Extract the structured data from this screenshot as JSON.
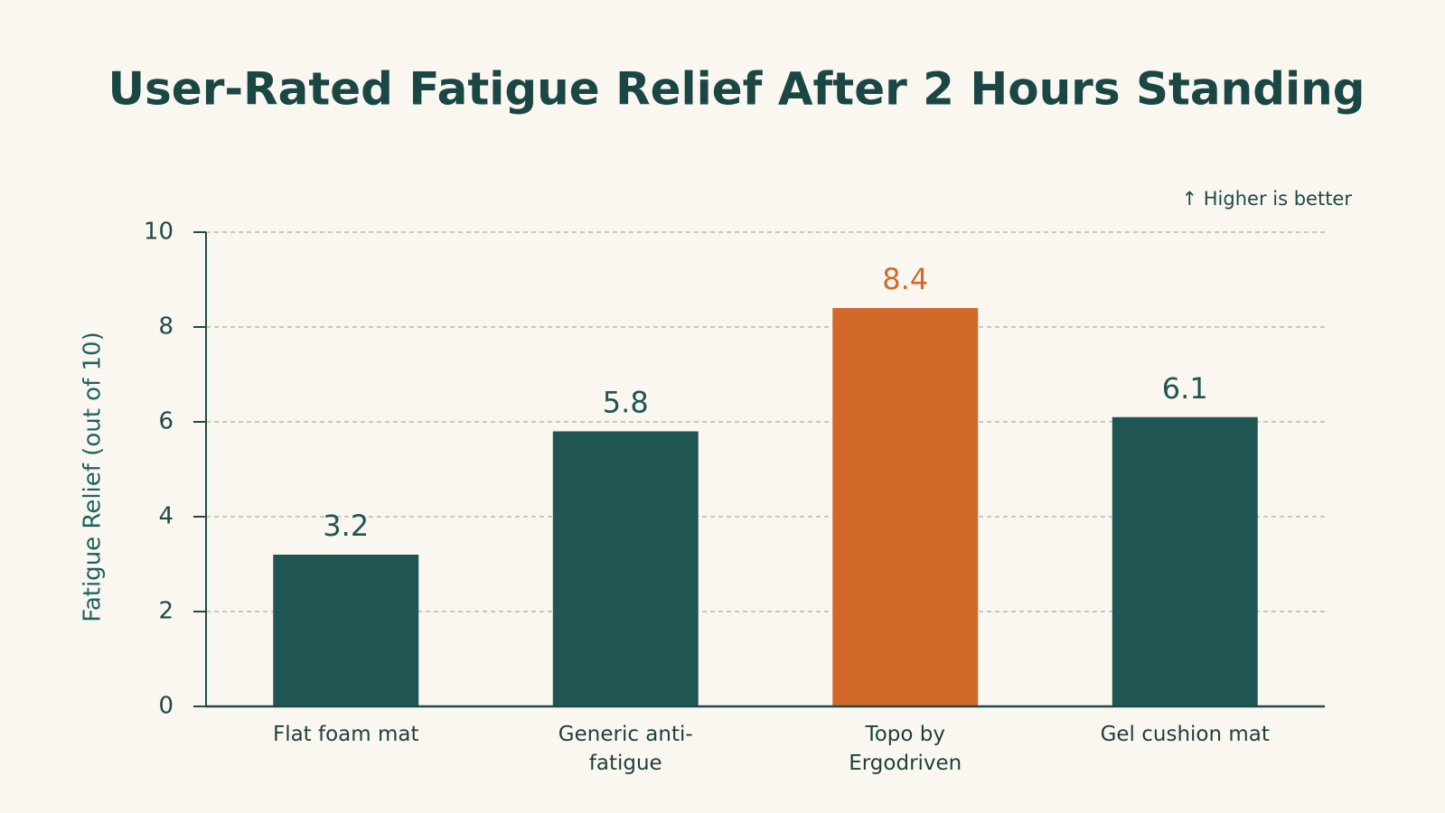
{
  "chart_data": {
    "type": "bar",
    "title": "User-Rated Fatigue Relief After 2 Hours Standing",
    "annotation": "↑ Higher is better",
    "y_label": "Fatigue Relief (out of 10)",
    "categories": [
      "Flat foam mat",
      "Generic anti-fatigue",
      "Topo by Ergodriven",
      "Gel cushion mat"
    ],
    "values": [
      3.2,
      5.8,
      8.4,
      6.1
    ],
    "colors": [
      "#1f5552",
      "#1f5552",
      "#d2692a",
      "#1f5552"
    ],
    "ylim": [
      0,
      10
    ],
    "yticks": [
      0,
      2,
      4,
      6,
      8,
      10
    ],
    "grid": true
  }
}
